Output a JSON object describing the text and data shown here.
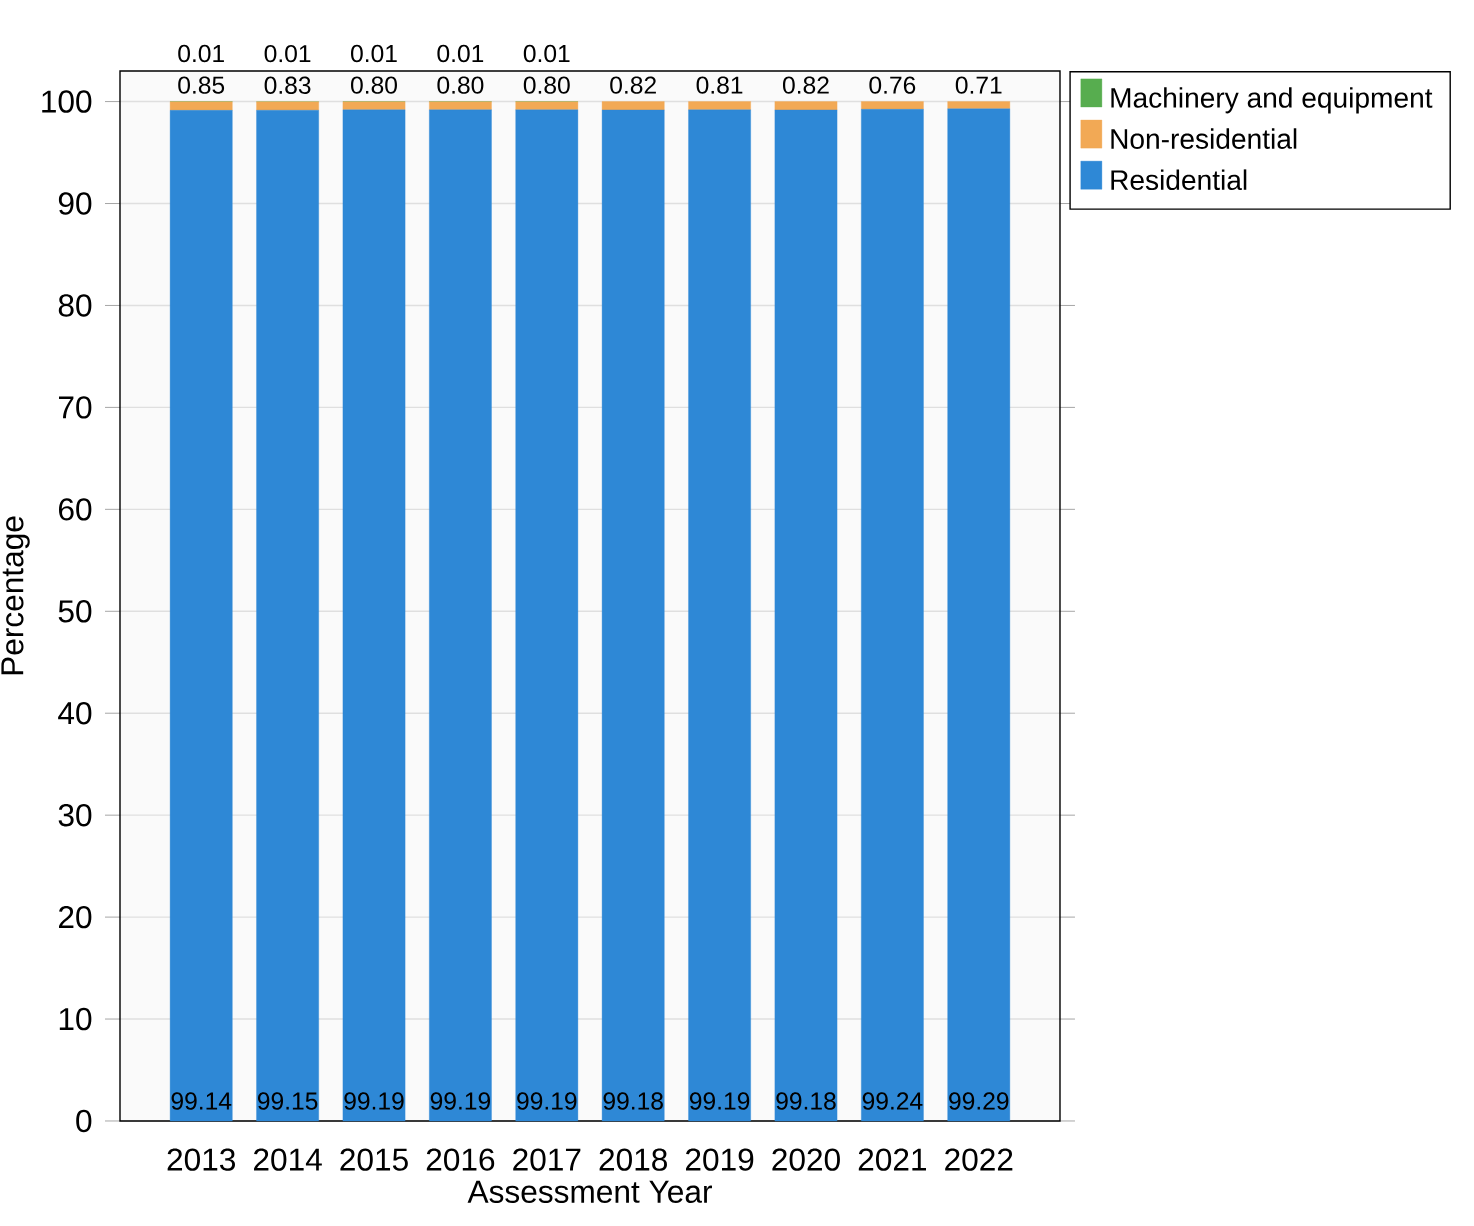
{
  "chart_data": {
    "type": "bar",
    "stacked": true,
    "xlabel": "Assessment Year",
    "ylabel": "Percentage",
    "categories": [
      "2013",
      "2014",
      "2015",
      "2016",
      "2017",
      "2018",
      "2019",
      "2020",
      "2021",
      "2022"
    ],
    "series": [
      {
        "name": "Residential",
        "color": "#2e88d6",
        "values": [
          99.14,
          99.15,
          99.19,
          99.19,
          99.19,
          99.18,
          99.19,
          99.18,
          99.24,
          99.29
        ],
        "value_labels": [
          "99.14",
          "99.15",
          "99.19",
          "99.19",
          "99.19",
          "99.18",
          "99.19",
          "99.18",
          "99.24",
          "99.29"
        ]
      },
      {
        "name": "Non-residential",
        "color": "#f2a955",
        "values": [
          0.85,
          0.83,
          0.8,
          0.8,
          0.8,
          0.82,
          0.81,
          0.82,
          0.76,
          0.71
        ],
        "value_labels": [
          "0.85",
          "0.83",
          "0.80",
          "0.80",
          "0.80",
          "0.82",
          "0.81",
          "0.82",
          "0.76",
          "0.71"
        ]
      },
      {
        "name": "Machinery and equipment",
        "color": "#57ad4f",
        "values": [
          0.01,
          0.01,
          0.01,
          0.01,
          0.01,
          0,
          0,
          0,
          0,
          0
        ],
        "value_labels": [
          "0.01",
          "0.01",
          "0.01",
          "0.01",
          "0.01",
          null,
          null,
          null,
          null,
          null
        ]
      }
    ],
    "ylim": [
      0,
      103
    ],
    "yticks": [
      0,
      10,
      20,
      30,
      40,
      50,
      60,
      70,
      80,
      90,
      100
    ],
    "grid": "y",
    "legend": "top right"
  }
}
